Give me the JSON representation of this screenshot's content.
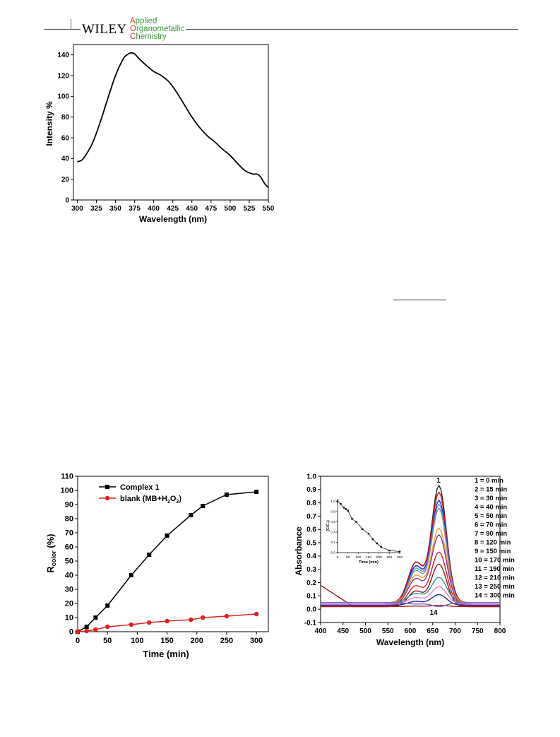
{
  "header": {
    "publisher": "WILEY",
    "journal_lines": [
      {
        "cap": "A",
        "rest": "pplied"
      },
      {
        "cap": "O",
        "rest": "rganometallic"
      },
      {
        "cap": "C",
        "rest": "hemistry"
      }
    ]
  },
  "figures": {
    "pl": {
      "xlabel": "Wavelength (nm)",
      "ylabel": "Intensity %"
    },
    "rcolor": {
      "xlabel": "Time (min)",
      "ylabel_main": "R",
      "ylabel_sub": "color",
      "ylabel_unit": " (%)",
      "legend": [
        {
          "main": "Complex 1"
        },
        {
          "main": "blank (MB+H",
          "sub1": "2",
          "mid": "O",
          "sub2": "2",
          "end": ")"
        }
      ]
    },
    "uv": {
      "xlabel": "Wavelength (nm)",
      "ylabel": "Absorbance",
      "peak_label_top": "1",
      "peak_label_bottom": "14",
      "legend": [
        "1 = 0 min",
        "2 = 15 min",
        "3 = 30 min",
        "4 = 40 min",
        "5 = 50 min",
        "6 = 70 min",
        "7 = 90 min",
        "8 = 120 min",
        "9 = 150 min",
        "10 = 170 min",
        "11 = 190 min",
        "12 = 210 min",
        "13 = 250 min",
        "14 = 300 min"
      ],
      "inset": {
        "xlabel": "Time (min)",
        "ylabel": "(C/C₀)"
      }
    }
  },
  "chart_data": [
    {
      "type": "line",
      "xlabel": "Wavelength (nm)",
      "ylabel": "Intensity %",
      "xlim": [
        295,
        550
      ],
      "ylim": [
        0,
        150
      ],
      "xticks": [
        300,
        325,
        350,
        375,
        400,
        425,
        450,
        475,
        500,
        525,
        550
      ],
      "yticks": [
        0,
        20,
        40,
        60,
        80,
        100,
        120,
        140
      ],
      "series": [
        {
          "x": [
            300,
            305,
            310,
            320,
            330,
            340,
            350,
            360,
            365,
            370,
            375,
            380,
            390,
            400,
            410,
            420,
            430,
            440,
            450,
            460,
            470,
            480,
            490,
            500,
            510,
            520,
            530,
            535,
            540,
            545,
            550
          ],
          "y": [
            37,
            38,
            42,
            55,
            75,
            98,
            120,
            136,
            140,
            142,
            141,
            137,
            130,
            124,
            120,
            114,
            104,
            92,
            80,
            70,
            62,
            56,
            49,
            43,
            35,
            28,
            25,
            25,
            22,
            16,
            12
          ]
        }
      ]
    },
    {
      "type": "line",
      "xlabel": "Time (min)",
      "ylabel": "Rcolor (%)",
      "xlim": [
        0,
        320
      ],
      "ylim": [
        0,
        110
      ],
      "xticks": [
        0,
        50,
        100,
        150,
        200,
        250,
        300
      ],
      "yticks": [
        0,
        10,
        20,
        30,
        40,
        50,
        60,
        70,
        80,
        90,
        100,
        110
      ],
      "legend": "top-left",
      "series": [
        {
          "name": "Complex 1",
          "color": "#000000",
          "marker": "square",
          "x": [
            0,
            15,
            30,
            50,
            90,
            120,
            150,
            190,
            210,
            250,
            300
          ],
          "y": [
            0,
            3.5,
            10,
            18.5,
            40,
            54.5,
            68,
            82.5,
            89,
            97,
            99
          ]
        },
        {
          "name": "blank (MB+H2O2)",
          "color": "#e02020",
          "marker": "circle",
          "x": [
            0,
            15,
            30,
            50,
            90,
            120,
            150,
            190,
            210,
            250,
            300
          ],
          "y": [
            0,
            0.5,
            1.5,
            3.5,
            5,
            6.5,
            7.5,
            8.5,
            10,
            11,
            12.5
          ]
        }
      ]
    },
    {
      "type": "line",
      "xlabel": "Wavelength (nm)",
      "ylabel": "Absorbance",
      "xlim": [
        400,
        800
      ],
      "ylim": [
        -0.1,
        1.0
      ],
      "xticks": [
        400,
        450,
        500,
        550,
        600,
        650,
        700,
        750,
        800
      ],
      "yticks": [
        -0.1,
        0.0,
        0.1,
        0.2,
        0.3,
        0.4,
        0.5,
        0.6,
        0.7,
        0.8,
        0.9,
        1.0
      ],
      "legend": "right",
      "peaks_664nm": [
        0.93,
        0.88,
        0.82,
        0.79,
        0.76,
        0.61,
        0.56,
        0.43,
        0.34,
        0.24,
        0.17,
        0.11,
        0.03,
        0.02
      ],
      "series_colors": [
        "#222222",
        "#e01010",
        "#2020d0",
        "#4aa0d0",
        "#8a8a8a",
        "#e8a020",
        "#9030a0",
        "#d02030",
        "#8a1818",
        "#2a9a8a",
        "#ee77cc",
        "#2a2a9a",
        "#b01818",
        "#6a6ad0"
      ],
      "inset": {
        "type": "line",
        "xlabel": "Time (min)",
        "ylabel": "(C/C₀)",
        "xlim": [
          0,
          300
        ],
        "ylim": [
          0,
          1.05
        ],
        "xticks": [
          0,
          50,
          100,
          150,
          200,
          250,
          300
        ],
        "yticks": [
          0.0,
          0.2,
          0.4,
          0.6,
          0.8,
          1.0
        ],
        "x": [
          0,
          15,
          30,
          40,
          50,
          70,
          90,
          120,
          150,
          170,
          190,
          210,
          250,
          300
        ],
        "y": [
          1.0,
          0.95,
          0.88,
          0.85,
          0.82,
          0.66,
          0.6,
          0.46,
          0.37,
          0.26,
          0.18,
          0.11,
          0.04,
          0.02
        ]
      }
    }
  ]
}
